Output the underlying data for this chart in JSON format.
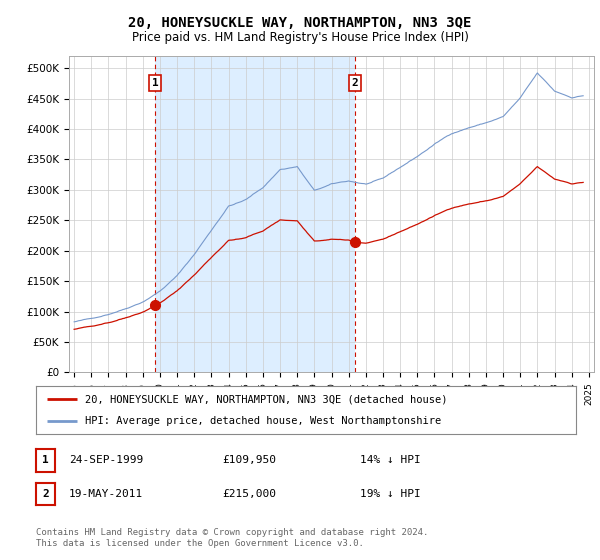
{
  "title": "20, HONEYSUCKLE WAY, NORTHAMPTON, NN3 3QE",
  "subtitle": "Price paid vs. HM Land Registry's House Price Index (HPI)",
  "title_fontsize": 10,
  "subtitle_fontsize": 8.5,
  "ylabel_ticks": [
    "£0",
    "£50K",
    "£100K",
    "£150K",
    "£200K",
    "£250K",
    "£300K",
    "£350K",
    "£400K",
    "£450K",
    "£500K"
  ],
  "ytick_values": [
    0,
    50000,
    100000,
    150000,
    200000,
    250000,
    300000,
    350000,
    400000,
    450000,
    500000
  ],
  "ylim": [
    0,
    520000
  ],
  "background_color": "#ffffff",
  "plot_bg_color": "#ffffff",
  "grid_color": "#cccccc",
  "shade_color": "#ddeeff",
  "hpi_color": "#7799cc",
  "price_color": "#cc1100",
  "marker1_x": 1999.73,
  "marker1_y": 109950,
  "marker1_label": "1",
  "marker2_x": 2011.38,
  "marker2_y": 215000,
  "marker2_label": "2",
  "vline1_x": 1999.73,
  "vline2_x": 2011.38,
  "legend_price_label": "20, HONEYSUCKLE WAY, NORTHAMPTON, NN3 3QE (detached house)",
  "legend_hpi_label": "HPI: Average price, detached house, West Northamptonshire",
  "table_row1": [
    "1",
    "24-SEP-1999",
    "£109,950",
    "14% ↓ HPI"
  ],
  "table_row2": [
    "2",
    "19-MAY-2011",
    "£215,000",
    "19% ↓ HPI"
  ],
  "footnote": "Contains HM Land Registry data © Crown copyright and database right 2024.\nThis data is licensed under the Open Government Licence v3.0.",
  "xlim": [
    1994.7,
    2025.3
  ],
  "hpi_seed": 42
}
